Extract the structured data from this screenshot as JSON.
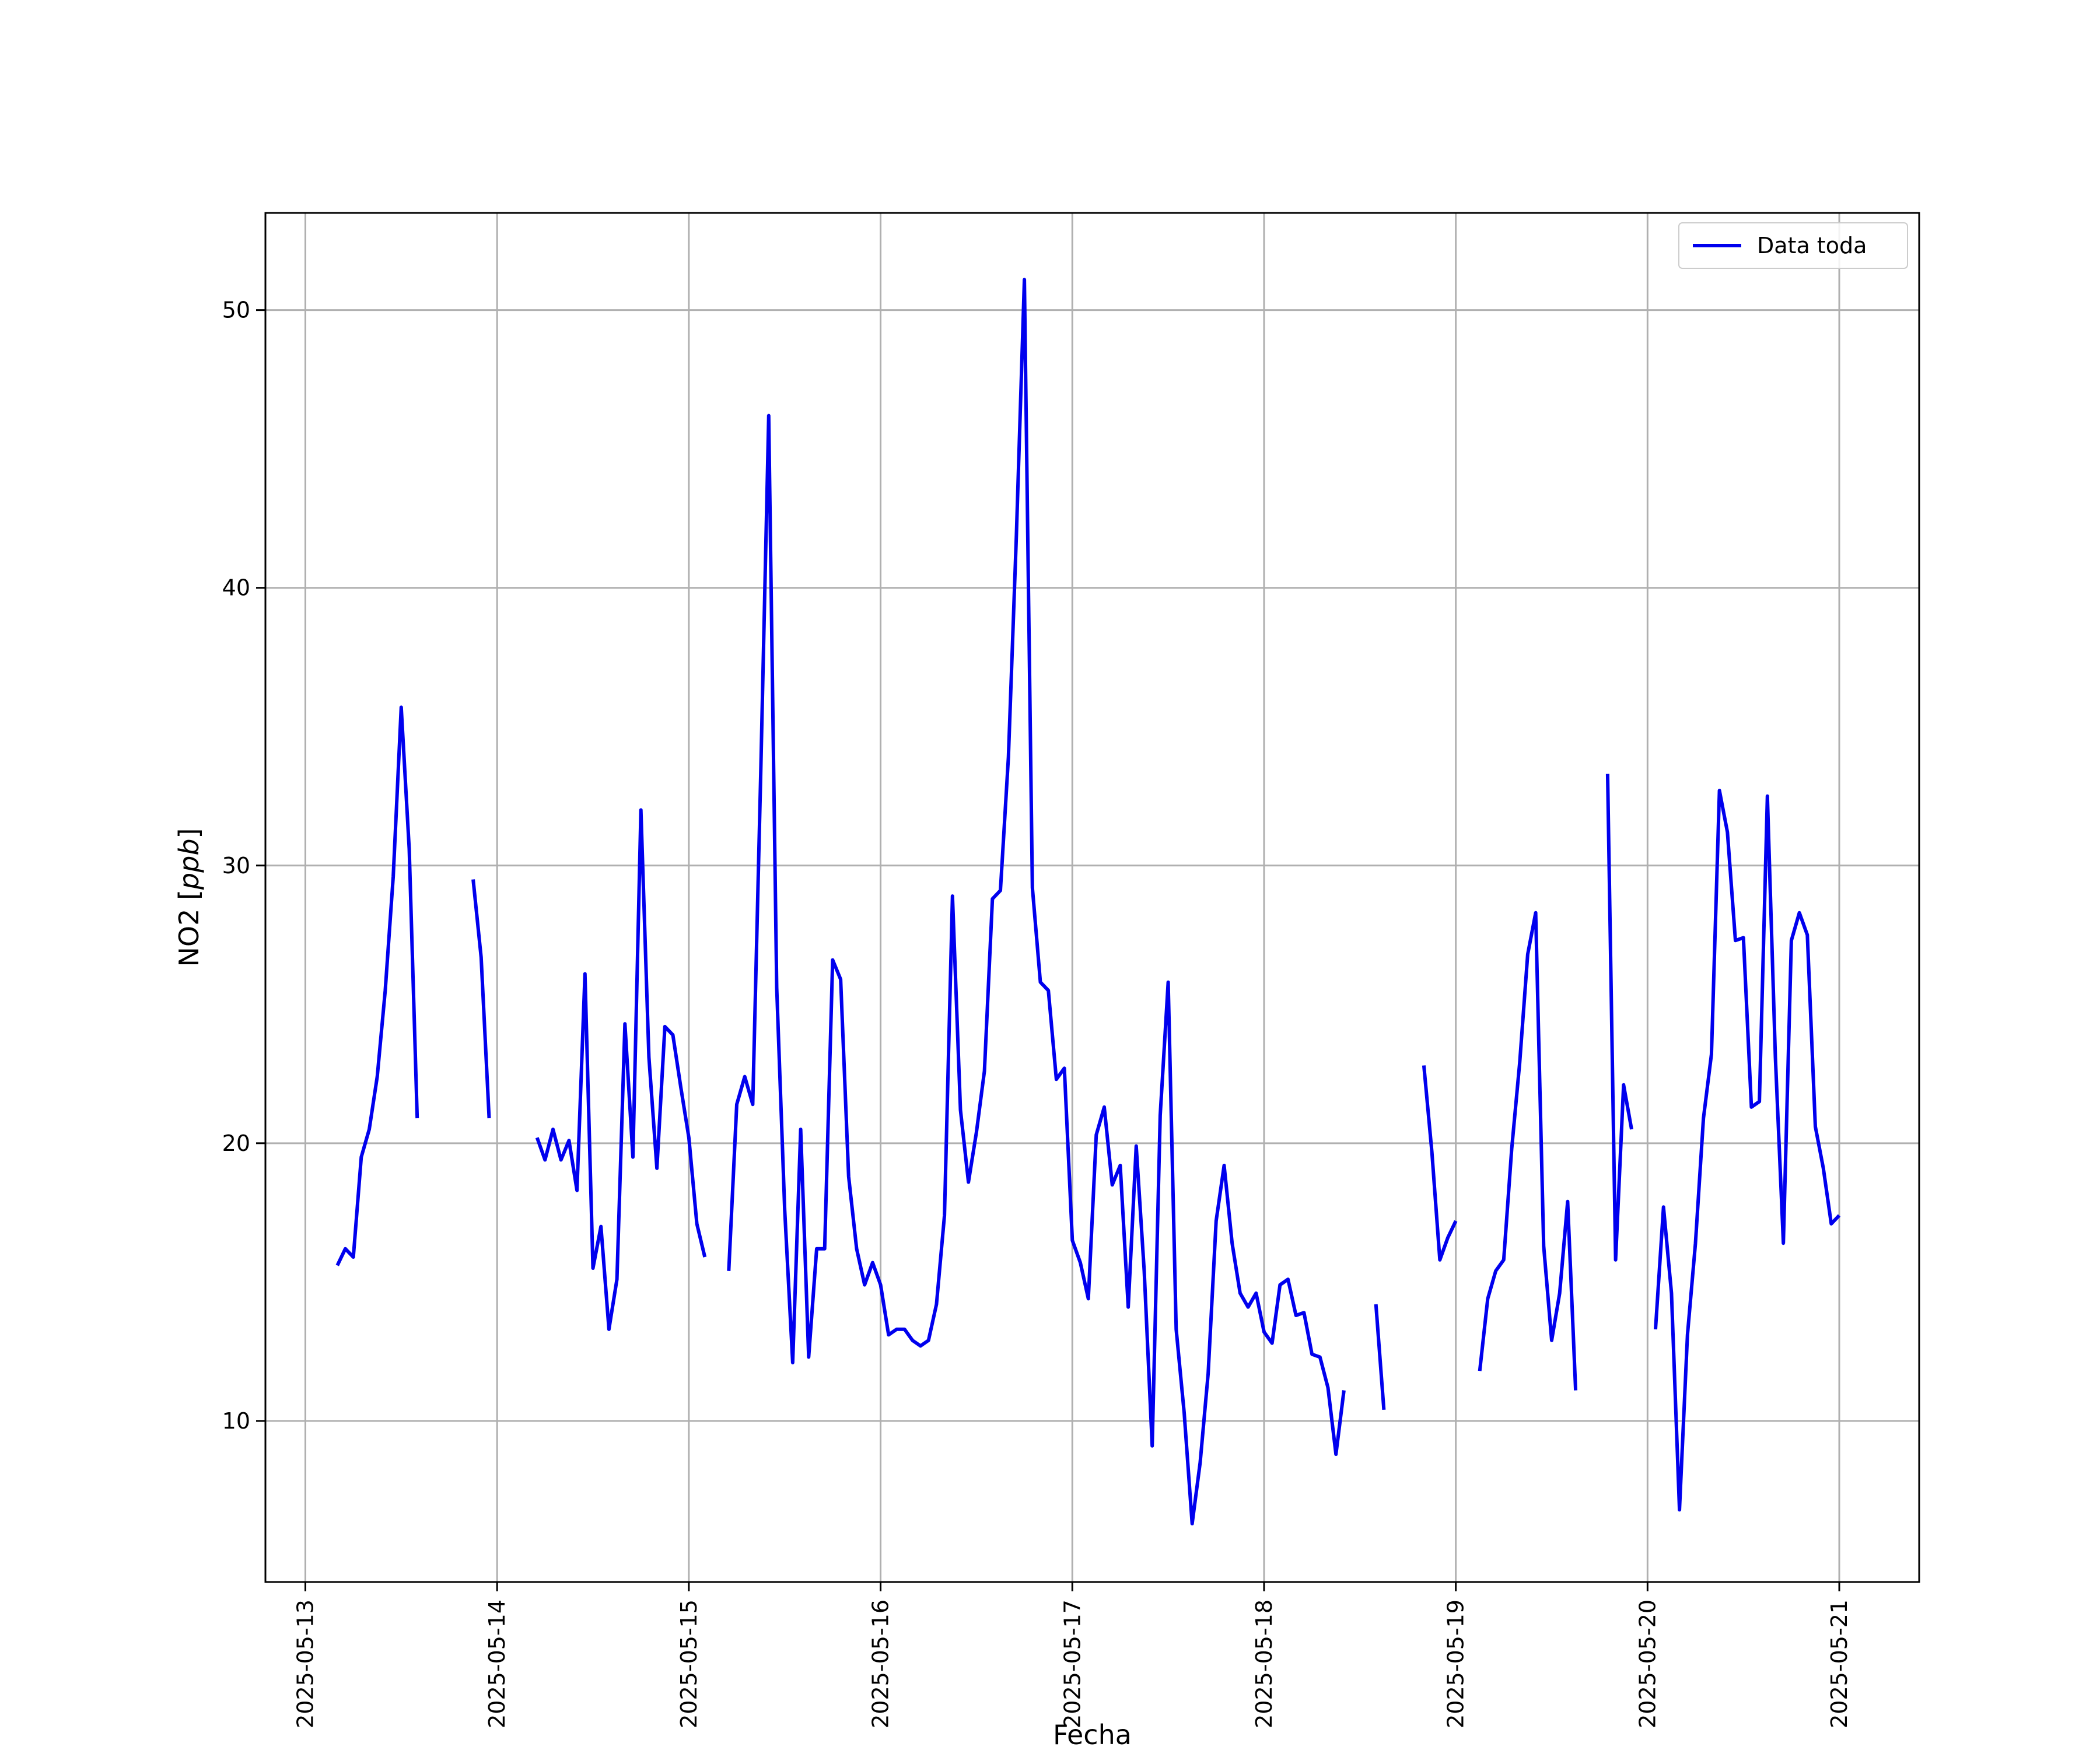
{
  "chart_data": {
    "type": "line",
    "xlabel": "Fecha",
    "ylabel_main": "NO2 [",
    "ylabel_unit": "ppb",
    "ylabel_close": "]",
    "x_ticks": [
      "2025-05-13",
      "2025-05-14",
      "2025-05-15",
      "2025-05-16",
      "2025-05-17",
      "2025-05-18",
      "2025-05-19",
      "2025-05-20",
      "2025-05-21"
    ],
    "y_ticks": [
      10,
      20,
      30,
      40,
      50
    ],
    "xlim": [
      "2025-05-12 19:00",
      "2025-05-21 10:00"
    ],
    "ylim": [
      4.2,
      53.5
    ],
    "grid": true,
    "legend_position": "top-right",
    "colors": {
      "series": "#0000ee",
      "grid": "#b0b0b0",
      "axes": "#000000"
    },
    "series": [
      {
        "name": "Data toda",
        "segments": [
          [
            [
              "2025-05-13 04:00",
              15.6
            ],
            [
              "2025-05-13 05:00",
              16.2
            ],
            [
              "2025-05-13 06:00",
              15.9
            ],
            [
              "2025-05-13 07:00",
              19.5
            ],
            [
              "2025-05-13 08:00",
              20.5
            ],
            [
              "2025-05-13 09:00",
              22.4
            ],
            [
              "2025-05-13 10:00",
              25.5
            ],
            [
              "2025-05-13 11:00",
              29.6
            ],
            [
              "2025-05-13 12:00",
              35.7
            ],
            [
              "2025-05-13 13:00",
              30.6
            ],
            [
              "2025-05-13 14:00",
              20.9
            ]
          ],
          [
            [
              "2025-05-13 21:00",
              29.5
            ],
            [
              "2025-05-13 22:00",
              26.7
            ],
            [
              "2025-05-13 23:00",
              20.9
            ]
          ],
          [
            [
              "2025-05-14 05:00",
              20.2
            ],
            [
              "2025-05-14 06:00",
              19.4
            ],
            [
              "2025-05-14 07:00",
              20.5
            ],
            [
              "2025-05-14 08:00",
              19.4
            ],
            [
              "2025-05-14 09:00",
              20.1
            ],
            [
              "2025-05-14 10:00",
              18.3
            ],
            [
              "2025-05-14 11:00",
              26.1
            ],
            [
              "2025-05-14 12:00",
              15.5
            ],
            [
              "2025-05-14 13:00",
              17.0
            ],
            [
              "2025-05-14 14:00",
              13.3
            ],
            [
              "2025-05-14 15:00",
              15.1
            ],
            [
              "2025-05-14 16:00",
              24.3
            ],
            [
              "2025-05-14 17:00",
              19.5
            ],
            [
              "2025-05-14 18:00",
              32.0
            ],
            [
              "2025-05-14 19:00",
              23.1
            ],
            [
              "2025-05-14 20:00",
              19.1
            ],
            [
              "2025-05-14 21:00",
              24.2
            ],
            [
              "2025-05-14 22:00",
              23.9
            ],
            [
              "2025-05-14 23:00",
              22.0
            ],
            [
              "2025-05-15 00:00",
              20.2
            ],
            [
              "2025-05-15 01:00",
              17.1
            ],
            [
              "2025-05-15 02:00",
              15.9
            ]
          ],
          [
            [
              "2025-05-15 05:00",
              15.4
            ],
            [
              "2025-05-15 06:00",
              21.4
            ],
            [
              "2025-05-15 07:00",
              22.4
            ],
            [
              "2025-05-15 08:00",
              21.4
            ],
            [
              "2025-05-15 09:00",
              33.3
            ],
            [
              "2025-05-15 10:00",
              46.2
            ],
            [
              "2025-05-15 11:00",
              25.6
            ],
            [
              "2025-05-15 12:00",
              17.6
            ],
            [
              "2025-05-15 13:00",
              12.1
            ],
            [
              "2025-05-15 14:00",
              20.5
            ],
            [
              "2025-05-15 15:00",
              12.3
            ],
            [
              "2025-05-15 16:00",
              16.2
            ],
            [
              "2025-05-15 17:00",
              16.2
            ],
            [
              "2025-05-15 18:00",
              26.6
            ],
            [
              "2025-05-15 19:00",
              25.9
            ],
            [
              "2025-05-15 20:00",
              18.8
            ],
            [
              "2025-05-15 21:00",
              16.2
            ],
            [
              "2025-05-15 22:00",
              14.9
            ],
            [
              "2025-05-15 23:00",
              15.7
            ],
            [
              "2025-05-16 00:00",
              14.9
            ],
            [
              "2025-05-16 01:00",
              13.1
            ],
            [
              "2025-05-16 02:00",
              13.3
            ],
            [
              "2025-05-16 03:00",
              13.3
            ],
            [
              "2025-05-16 04:00",
              12.9
            ],
            [
              "2025-05-16 05:00",
              12.7
            ],
            [
              "2025-05-16 06:00",
              12.9
            ],
            [
              "2025-05-16 07:00",
              14.2
            ],
            [
              "2025-05-16 08:00",
              17.4
            ],
            [
              "2025-05-16 09:00",
              28.9
            ],
            [
              "2025-05-16 10:00",
              21.2
            ],
            [
              "2025-05-16 11:00",
              18.6
            ],
            [
              "2025-05-16 12:00",
              20.4
            ],
            [
              "2025-05-16 13:00",
              22.6
            ],
            [
              "2025-05-16 14:00",
              28.8
            ],
            [
              "2025-05-16 15:00",
              29.1
            ],
            [
              "2025-05-16 16:00",
              33.9
            ],
            [
              "2025-05-16 17:00",
              41.9
            ],
            [
              "2025-05-16 18:00",
              51.1
            ],
            [
              "2025-05-16 19:00",
              29.2
            ],
            [
              "2025-05-16 20:00",
              25.8
            ],
            [
              "2025-05-16 21:00",
              25.5
            ],
            [
              "2025-05-16 22:00",
              22.3
            ],
            [
              "2025-05-16 23:00",
              22.7
            ],
            [
              "2025-05-17 00:00",
              16.5
            ],
            [
              "2025-05-17 01:00",
              15.7
            ],
            [
              "2025-05-17 02:00",
              14.4
            ],
            [
              "2025-05-17 03:00",
              20.3
            ],
            [
              "2025-05-17 04:00",
              21.3
            ],
            [
              "2025-05-17 05:00",
              18.5
            ],
            [
              "2025-05-17 06:00",
              19.2
            ],
            [
              "2025-05-17 07:00",
              14.1
            ],
            [
              "2025-05-17 08:00",
              19.9
            ],
            [
              "2025-05-17 09:00",
              15.4
            ],
            [
              "2025-05-17 10:00",
              9.1
            ],
            [
              "2025-05-17 11:00",
              21.0
            ],
            [
              "2025-05-17 12:00",
              25.8
            ],
            [
              "2025-05-17 13:00",
              13.3
            ],
            [
              "2025-05-17 14:00",
              10.3
            ],
            [
              "2025-05-17 15:00",
              6.3
            ],
            [
              "2025-05-17 16:00",
              8.5
            ],
            [
              "2025-05-17 17:00",
              11.7
            ],
            [
              "2025-05-17 18:00",
              17.2
            ],
            [
              "2025-05-17 19:00",
              19.2
            ],
            [
              "2025-05-17 20:00",
              16.4
            ],
            [
              "2025-05-17 21:00",
              14.6
            ],
            [
              "2025-05-17 22:00",
              14.1
            ],
            [
              "2025-05-17 23:00",
              14.6
            ],
            [
              "2025-05-18 00:00",
              13.2
            ],
            [
              "2025-05-18 01:00",
              12.8
            ],
            [
              "2025-05-18 02:00",
              14.9
            ],
            [
              "2025-05-18 03:00",
              15.1
            ],
            [
              "2025-05-18 04:00",
              13.8
            ],
            [
              "2025-05-18 05:00",
              13.9
            ],
            [
              "2025-05-18 06:00",
              12.4
            ],
            [
              "2025-05-18 07:00",
              12.3
            ],
            [
              "2025-05-18 08:00",
              11.2
            ],
            [
              "2025-05-18 09:00",
              8.8
            ],
            [
              "2025-05-18 10:00",
              11.1
            ]
          ],
          [
            [
              "2025-05-18 14:00",
              14.2
            ],
            [
              "2025-05-18 15:00",
              10.4
            ]
          ],
          [
            [
              "2025-05-18 20:00",
              22.8
            ],
            [
              "2025-05-18 21:00",
              19.7
            ],
            [
              "2025-05-18 22:00",
              15.8
            ],
            [
              "2025-05-18 23:00",
              16.6
            ],
            [
              "2025-05-19 00:00",
              17.2
            ]
          ],
          [
            [
              "2025-05-19 03:00",
              11.8
            ],
            [
              "2025-05-19 04:00",
              14.4
            ],
            [
              "2025-05-19 05:00",
              15.4
            ],
            [
              "2025-05-19 06:00",
              15.8
            ],
            [
              "2025-05-19 07:00",
              19.8
            ],
            [
              "2025-05-19 08:00",
              22.9
            ],
            [
              "2025-05-19 09:00",
              26.8
            ],
            [
              "2025-05-19 10:00",
              28.3
            ],
            [
              "2025-05-19 11:00",
              16.3
            ],
            [
              "2025-05-19 12:00",
              12.9
            ],
            [
              "2025-05-19 13:00",
              14.6
            ],
            [
              "2025-05-19 14:00",
              17.9
            ],
            [
              "2025-05-19 15:00",
              11.1
            ]
          ],
          [
            [
              "2025-05-19 19:00",
              33.3
            ],
            [
              "2025-05-19 20:00",
              15.8
            ],
            [
              "2025-05-19 21:00",
              22.1
            ],
            [
              "2025-05-19 22:00",
              20.5
            ]
          ],
          [
            [
              "2025-05-20 01:00",
              13.3
            ],
            [
              "2025-05-20 02:00",
              17.7
            ],
            [
              "2025-05-20 03:00",
              14.6
            ],
            [
              "2025-05-20 04:00",
              6.8
            ],
            [
              "2025-05-20 05:00",
              13.1
            ],
            [
              "2025-05-20 06:00",
              16.4
            ],
            [
              "2025-05-20 07:00",
              20.9
            ],
            [
              "2025-05-20 08:00",
              23.2
            ],
            [
              "2025-05-20 09:00",
              32.7
            ],
            [
              "2025-05-20 10:00",
              31.2
            ],
            [
              "2025-05-20 11:00",
              27.3
            ],
            [
              "2025-05-20 12:00",
              27.4
            ],
            [
              "2025-05-20 13:00",
              21.3
            ],
            [
              "2025-05-20 14:00",
              21.5
            ],
            [
              "2025-05-20 15:00",
              32.5
            ],
            [
              "2025-05-20 16:00",
              23.1
            ],
            [
              "2025-05-20 17:00",
              16.4
            ],
            [
              "2025-05-20 18:00",
              27.3
            ],
            [
              "2025-05-20 19:00",
              28.3
            ],
            [
              "2025-05-20 20:00",
              27.5
            ],
            [
              "2025-05-20 21:00",
              20.6
            ],
            [
              "2025-05-20 22:00",
              19.1
            ],
            [
              "2025-05-20 23:00",
              17.1
            ],
            [
              "2025-05-21 00:00",
              17.4
            ]
          ]
        ]
      }
    ]
  }
}
